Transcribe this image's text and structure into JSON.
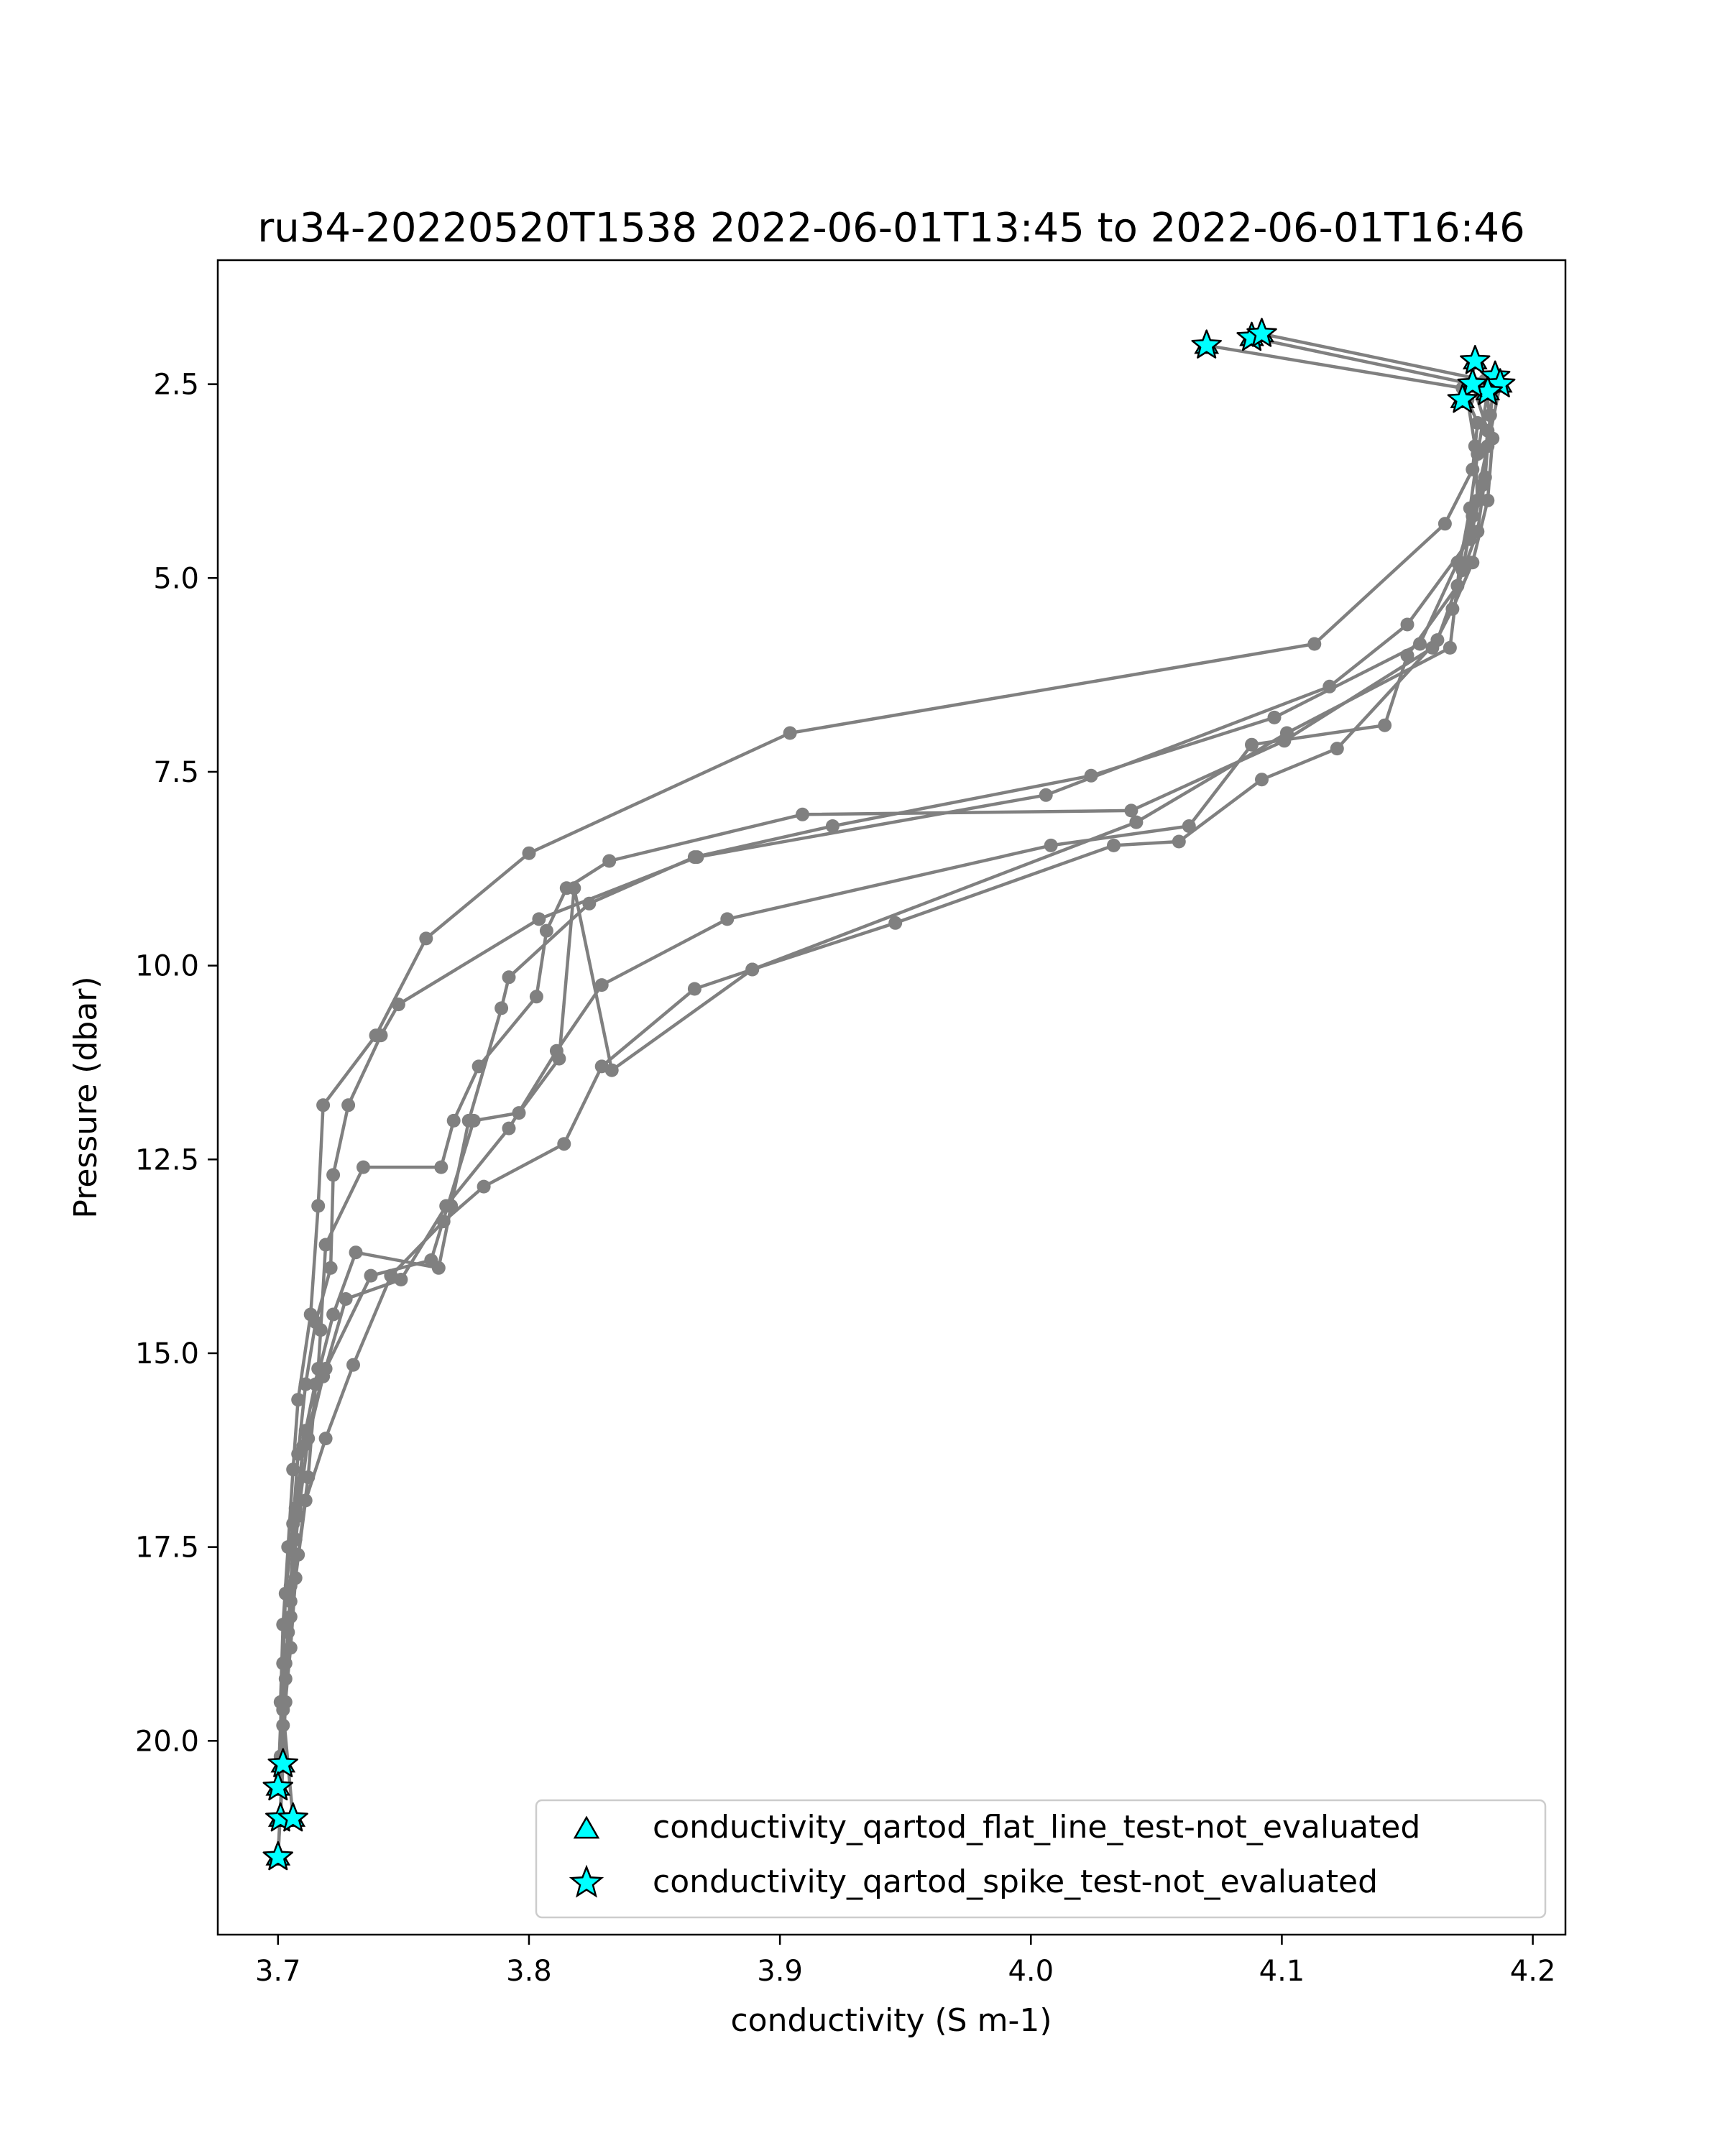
{
  "chart_data": {
    "type": "line",
    "title": "ru34-20220520T1538 2022-06-01T13:45 to 2022-06-01T16:46",
    "xlabel": "conductivity (S m-1)",
    "ylabel": "Pressure (dbar)",
    "xlim": [
      3.676,
      4.213
    ],
    "ylim": [
      22.5,
      0.9
    ],
    "y_inverted": true,
    "x_ticks": [
      3.7,
      3.8,
      3.9,
      4.0,
      4.1,
      4.2
    ],
    "x_tick_labels": [
      "3.7",
      "3.8",
      "3.9",
      "4.0",
      "4.1",
      "4.2"
    ],
    "y_ticks": [
      2.5,
      5.0,
      7.5,
      10.0,
      12.5,
      15.0,
      17.5,
      20.0
    ],
    "y_tick_labels": [
      "2.5",
      "5.0",
      "7.5",
      "10.0",
      "12.5",
      "15.0",
      "17.5",
      "20.0"
    ],
    "grid": false,
    "legend_position": "lower-right",
    "line_color": "#808080",
    "marker_color": "#808080",
    "flag_color": "#00ffff",
    "series": [
      {
        "points": [
          [
            4.07,
            2.0
          ],
          [
            4.172,
            2.55
          ],
          [
            4.178,
            3.0
          ],
          [
            4.176,
            3.6
          ],
          [
            4.165,
            4.3
          ],
          [
            4.113,
            5.85
          ],
          [
            3.904,
            7.0
          ],
          [
            3.8,
            8.55
          ],
          [
            3.759,
            9.65
          ],
          [
            3.739,
            10.9
          ],
          [
            3.718,
            11.8
          ],
          [
            3.716,
            13.1
          ],
          [
            3.713,
            14.5
          ],
          [
            3.708,
            15.6
          ],
          [
            3.706,
            16.5
          ],
          [
            3.704,
            17.5
          ],
          [
            3.702,
            18.5
          ],
          [
            3.701,
            19.5
          ],
          [
            3.702,
            20.3
          ],
          [
            3.7,
            21.5
          ]
        ]
      },
      {
        "points": [
          [
            4.088,
            1.9
          ],
          [
            4.176,
            2.5
          ],
          [
            4.182,
            3.1
          ],
          [
            4.18,
            3.8
          ],
          [
            4.175,
            4.5
          ],
          [
            4.15,
            5.6
          ],
          [
            4.119,
            6.4
          ],
          [
            4.006,
            7.8
          ],
          [
            3.867,
            8.6
          ],
          [
            3.804,
            9.4
          ],
          [
            3.748,
            10.5
          ],
          [
            3.741,
            10.9
          ],
          [
            3.728,
            11.8
          ],
          [
            3.722,
            12.7
          ],
          [
            3.721,
            13.9
          ],
          [
            3.715,
            14.6
          ],
          [
            3.711,
            15.4
          ],
          [
            3.708,
            16.3
          ],
          [
            3.706,
            17.2
          ],
          [
            3.703,
            18.1
          ],
          [
            3.702,
            19.0
          ],
          [
            3.7,
            20.6
          ]
        ]
      },
      {
        "points": [
          [
            4.092,
            1.85
          ],
          [
            4.181,
            2.45
          ],
          [
            4.184,
            3.2
          ],
          [
            4.182,
            4.0
          ],
          [
            4.176,
            4.8
          ],
          [
            4.168,
            5.4
          ],
          [
            4.16,
            5.9
          ],
          [
            4.101,
            7.1
          ],
          [
            4.04,
            8.0
          ],
          [
            3.909,
            8.05
          ],
          [
            3.832,
            8.65
          ],
          [
            3.815,
            9.0
          ],
          [
            3.807,
            9.55
          ],
          [
            3.803,
            10.4
          ],
          [
            3.78,
            11.3
          ],
          [
            3.77,
            12.0
          ],
          [
            3.765,
            12.6
          ],
          [
            3.734,
            12.6
          ],
          [
            3.719,
            13.6
          ],
          [
            3.717,
            14.7
          ],
          [
            3.716,
            15.2
          ],
          [
            3.711,
            16.0
          ],
          [
            3.707,
            17.0
          ],
          [
            3.705,
            18.0
          ],
          [
            3.703,
            19.2
          ],
          [
            3.701,
            21.0
          ]
        ]
      },
      {
        "points": [
          [
            4.177,
            2.2
          ],
          [
            4.174,
            2.7
          ],
          [
            4.177,
            3.3
          ],
          [
            4.178,
            4.0
          ],
          [
            4.17,
            4.8
          ],
          [
            4.155,
            5.85
          ],
          [
            4.097,
            6.8
          ],
          [
            4.024,
            7.55
          ],
          [
            3.921,
            8.2
          ],
          [
            3.866,
            8.6
          ],
          [
            3.824,
            9.2
          ],
          [
            3.792,
            10.15
          ],
          [
            3.789,
            10.55
          ],
          [
            3.776,
            12.0
          ],
          [
            3.769,
            13.1
          ],
          [
            3.764,
            13.9
          ],
          [
            3.731,
            13.7
          ],
          [
            3.722,
            14.5
          ],
          [
            3.715,
            15.4
          ],
          [
            3.712,
            16.6
          ],
          [
            3.708,
            17.6
          ],
          [
            3.704,
            18.6
          ],
          [
            3.702,
            19.6
          ],
          [
            3.706,
            21.0
          ]
        ]
      },
      {
        "points": [
          [
            4.185,
            2.4
          ],
          [
            4.183,
            2.9
          ],
          [
            4.181,
            3.7
          ],
          [
            4.178,
            4.4
          ],
          [
            4.17,
            5.1
          ],
          [
            4.15,
            6.0
          ],
          [
            4.141,
            6.9
          ],
          [
            4.088,
            7.15
          ],
          [
            4.063,
            8.2
          ],
          [
            4.008,
            8.45
          ],
          [
            3.879,
            9.4
          ],
          [
            3.829,
            10.25
          ],
          [
            3.811,
            11.1
          ],
          [
            3.792,
            12.1
          ],
          [
            3.767,
            13.1
          ],
          [
            3.749,
            14.05
          ],
          [
            3.727,
            14.3
          ],
          [
            3.718,
            15.3
          ],
          [
            3.712,
            16.1
          ],
          [
            3.708,
            17.1
          ],
          [
            3.705,
            18.2
          ],
          [
            3.703,
            19.0
          ],
          [
            3.701,
            20.2
          ]
        ]
      },
      {
        "points": [
          [
            4.187,
            2.5
          ],
          [
            4.182,
            3.3
          ],
          [
            4.176,
            4.2
          ],
          [
            4.172,
            4.9
          ],
          [
            4.162,
            5.8
          ],
          [
            4.122,
            7.2
          ],
          [
            4.092,
            7.6
          ],
          [
            4.059,
            8.4
          ],
          [
            4.033,
            8.45
          ],
          [
            3.946,
            9.45
          ],
          [
            3.889,
            10.05
          ],
          [
            3.866,
            10.3
          ],
          [
            3.829,
            11.3
          ],
          [
            3.814,
            12.3
          ],
          [
            3.782,
            12.85
          ],
          [
            3.766,
            13.3
          ],
          [
            3.745,
            14.0
          ],
          [
            3.73,
            15.15
          ],
          [
            3.719,
            16.1
          ],
          [
            3.711,
            16.9
          ],
          [
            3.707,
            17.9
          ],
          [
            3.705,
            18.8
          ],
          [
            3.702,
            19.8
          ],
          [
            3.701,
            21.0
          ]
        ]
      },
      {
        "points": [
          [
            4.182,
            2.6
          ],
          [
            4.178,
            3.4
          ],
          [
            4.175,
            4.1
          ],
          [
            4.171,
            4.8
          ],
          [
            4.167,
            5.9
          ],
          [
            4.102,
            7.0
          ],
          [
            4.042,
            8.15
          ],
          [
            3.889,
            10.05
          ],
          [
            3.833,
            11.35
          ],
          [
            3.818,
            9.0
          ],
          [
            3.812,
            11.2
          ],
          [
            3.796,
            11.9
          ],
          [
            3.778,
            12.0
          ],
          [
            3.761,
            13.8
          ],
          [
            3.737,
            14.0
          ],
          [
            3.719,
            15.2
          ],
          [
            3.71,
            16.2
          ],
          [
            3.707,
            17.4
          ],
          [
            3.705,
            18.4
          ],
          [
            3.703,
            19.5
          ],
          [
            3.7,
            21.5
          ]
        ]
      }
    ],
    "flags": {
      "spike_test_not_evaluated": [
        [
          4.07,
          2.0
        ],
        [
          4.088,
          1.9
        ],
        [
          4.092,
          1.85
        ],
        [
          4.177,
          2.2
        ],
        [
          4.185,
          2.4
        ],
        [
          4.187,
          2.5
        ],
        [
          4.182,
          2.6
        ],
        [
          4.176,
          2.5
        ],
        [
          4.172,
          2.7
        ],
        [
          3.702,
          20.3
        ],
        [
          3.7,
          20.6
        ],
        [
          3.701,
          21.0
        ],
        [
          3.706,
          21.0
        ],
        [
          3.7,
          21.5
        ]
      ],
      "flat_line_test_not_evaluated": [
        [
          4.07,
          2.0
        ],
        [
          4.088,
          1.9
        ],
        [
          4.092,
          1.85
        ],
        [
          4.177,
          2.2
        ],
        [
          4.185,
          2.4
        ],
        [
          4.187,
          2.5
        ],
        [
          4.182,
          2.6
        ],
        [
          4.176,
          2.5
        ],
        [
          4.172,
          2.7
        ],
        [
          3.702,
          20.3
        ],
        [
          3.7,
          20.6
        ],
        [
          3.701,
          21.0
        ],
        [
          3.706,
          21.0
        ],
        [
          3.7,
          21.5
        ]
      ]
    },
    "legend": [
      {
        "marker": "triangle",
        "label": "conductivity_qartod_flat_line_test-not_evaluated"
      },
      {
        "marker": "star",
        "label": "conductivity_qartod_spike_test-not_evaluated"
      }
    ]
  }
}
